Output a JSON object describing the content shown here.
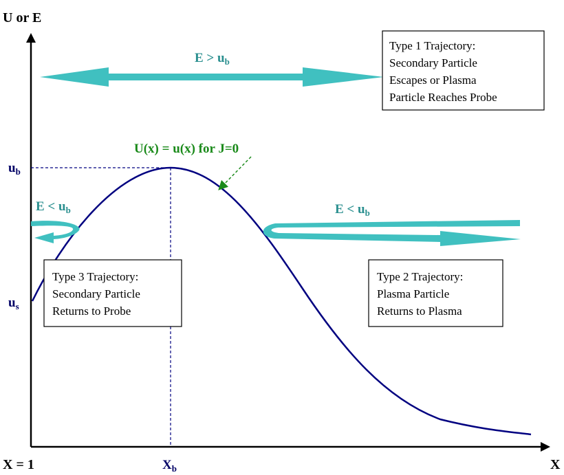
{
  "axes": {
    "y_label": "U or E",
    "x_label": "X",
    "x_origin_label": "X = 1",
    "x_peak_label": "X",
    "x_peak_sub": "b"
  },
  "levels": {
    "ub_main": "u",
    "ub_sub": "b",
    "us_main": "u",
    "us_sub": "s"
  },
  "curve_label": "U(x) = u(x) for J=0",
  "energy_labels": {
    "high": {
      "main": "E > u",
      "sub": "b"
    },
    "left": {
      "main": "E < u",
      "sub": "b"
    },
    "right": {
      "main": "E < u",
      "sub": "b"
    }
  },
  "boxes": {
    "type1": [
      "Type 1 Trajectory:",
      "Secondary Particle",
      "Escapes or Plasma",
      "Particle Reaches Probe"
    ],
    "type2": [
      "Type 2 Trajectory:",
      "Plasma Particle",
      "Returns to Plasma"
    ],
    "type3": [
      "Type 3 Trajectory:",
      "Secondary Particle",
      "Returns to Probe"
    ]
  },
  "colors": {
    "curve": "#000080",
    "arrow": "#40c0c0",
    "energy_text": "#2a8f8f",
    "curve_label": "#1a8a1a",
    "axis": "#000000",
    "guide": "#000080"
  }
}
